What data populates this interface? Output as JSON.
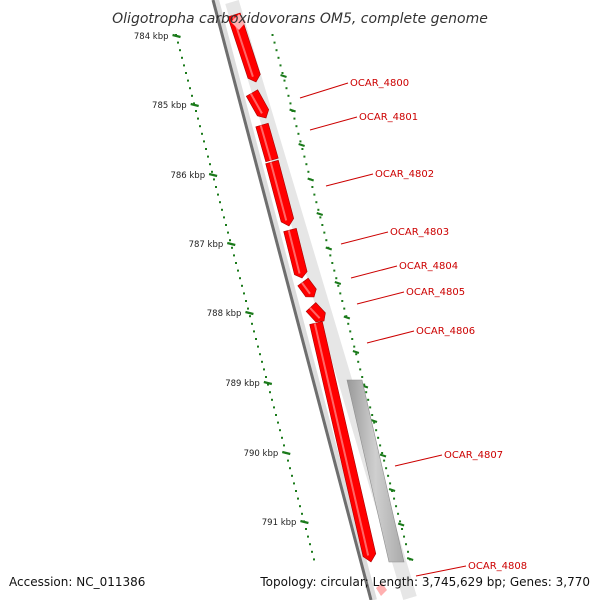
{
  "title": "Oligotropha carboxidovorans OM5, complete genome",
  "footer": {
    "accession": "Accession: NC_011386",
    "summary": "Topology: circular; Length: 3,745,629 bp; Genes: 3,770"
  },
  "colors": {
    "gene": "#ff0000",
    "label": "#cc0000",
    "tick": "#1a7a1a",
    "backbone_dark": "#777777",
    "backbone_light": "#d0d0d0",
    "feature_grey": "#bbbbbb"
  },
  "scale_labels": [
    "784 kbp",
    "785 kbp",
    "786 kbp",
    "787 kbp",
    "788 kbp",
    "789 kbp",
    "790 kbp",
    "791 kbp"
  ],
  "genes": [
    {
      "name": "OCAR_4800"
    },
    {
      "name": "OCAR_4801"
    },
    {
      "name": "OCAR_4802"
    },
    {
      "name": "OCAR_4803"
    },
    {
      "name": "OCAR_4804"
    },
    {
      "name": "OCAR_4805"
    },
    {
      "name": "OCAR_4806"
    },
    {
      "name": "OCAR_4807"
    },
    {
      "name": "OCAR_4808"
    }
  ]
}
